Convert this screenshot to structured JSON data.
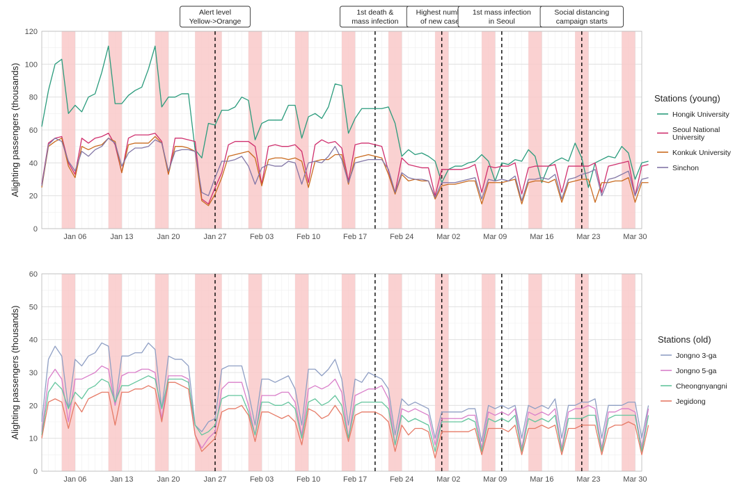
{
  "chart_data": [
    {
      "type": "line",
      "ylabel": "Alighting passengers (thousands)",
      "ylim": [
        0,
        120
      ],
      "yticks": [
        0,
        20,
        40,
        60,
        80,
        100,
        120
      ],
      "x_start": "2020-01-01",
      "x_end": "2020-03-31",
      "xticks": [
        "Jan 06",
        "Jan 13",
        "Jan 20",
        "Jan 27",
        "Feb 03",
        "Feb 10",
        "Feb 17",
        "Feb 24",
        "Mar 02",
        "Mar 09",
        "Mar 16",
        "Mar 23",
        "Mar 30"
      ],
      "grid": true,
      "legend": {
        "title": "Stations (young)",
        "position": "right"
      },
      "weekend_bands": [
        [
          "2020-01-04",
          "2020-01-05"
        ],
        [
          "2020-01-11",
          "2020-01-12"
        ],
        [
          "2020-01-18",
          "2020-01-19"
        ],
        [
          "2020-01-24",
          "2020-01-27"
        ],
        [
          "2020-02-01",
          "2020-02-02"
        ],
        [
          "2020-02-08",
          "2020-02-09"
        ],
        [
          "2020-02-15",
          "2020-02-16"
        ],
        [
          "2020-02-22",
          "2020-02-23"
        ],
        [
          "2020-02-29",
          "2020-03-01"
        ],
        [
          "2020-03-07",
          "2020-03-08"
        ],
        [
          "2020-03-14",
          "2020-03-15"
        ],
        [
          "2020-03-21",
          "2020-03-22"
        ],
        [
          "2020-03-28",
          "2020-03-29"
        ]
      ],
      "band_color": "#f9c9c9",
      "event_lines": [
        "2020-01-27",
        "2020-02-20",
        "2020-03-01",
        "2020-03-10",
        "2020-03-22"
      ],
      "annotations": [
        {
          "date": "2020-01-27",
          "lines": [
            "Alert level",
            "Yellow->Orange"
          ]
        },
        {
          "date": "2020-02-20",
          "lines": [
            "1st death &",
            "mass infection"
          ]
        },
        {
          "date": "2020-03-01",
          "lines": [
            "Highest number",
            "of new cases"
          ]
        },
        {
          "date": "2020-03-10",
          "lines": [
            "1st mass infection",
            "in Seoul"
          ]
        },
        {
          "date": "2020-03-22",
          "lines": [
            "Social distancing",
            "campaign starts"
          ]
        }
      ],
      "series": [
        {
          "name": "Hongik University",
          "legend_lines": [
            "Hongik University"
          ],
          "color": "#2a9b7c",
          "values": [
            62,
            84,
            100,
            103,
            70,
            75,
            71,
            80,
            82,
            95,
            111,
            76,
            76,
            81,
            84,
            86,
            97,
            111,
            74,
            80,
            80,
            82,
            82,
            48,
            43,
            64,
            63,
            72,
            72,
            74,
            80,
            78,
            54,
            64,
            66,
            66,
            66,
            75,
            75,
            55,
            68,
            70,
            67,
            74,
            88,
            87,
            58,
            67,
            73,
            73,
            73,
            73,
            74,
            64,
            44,
            48,
            45,
            46,
            44,
            41,
            28,
            36,
            38,
            38,
            40,
            41,
            45,
            41,
            29,
            40,
            39,
            42,
            41,
            48,
            44,
            28,
            38,
            41,
            43,
            41,
            52,
            43,
            25,
            40,
            42,
            44,
            43,
            50,
            46,
            30,
            40,
            41
          ]
        },
        {
          "name": "Seoul National University",
          "legend_lines": [
            "Seoul National",
            "University"
          ],
          "color": "#cf2f6d",
          "values": [
            27,
            52,
            55,
            56,
            40,
            33,
            55,
            52,
            55,
            56,
            58,
            51,
            34,
            55,
            57,
            57,
            57,
            58,
            53,
            33,
            55,
            55,
            54,
            53,
            18,
            15,
            25,
            34,
            51,
            53,
            53,
            53,
            50,
            27,
            50,
            51,
            50,
            50,
            51,
            47,
            28,
            51,
            54,
            52,
            53,
            49,
            29,
            51,
            52,
            52,
            51,
            50,
            35,
            22,
            43,
            39,
            38,
            37,
            37,
            20,
            36,
            36,
            36,
            36,
            37,
            39,
            22,
            38,
            37,
            38,
            38,
            40,
            21,
            37,
            38,
            38,
            38,
            39,
            22,
            38,
            38,
            38,
            38,
            40,
            22,
            38,
            39,
            40,
            41,
            20,
            38,
            39
          ]
        },
        {
          "name": "Konkuk University",
          "legend_lines": [
            "Konkuk University"
          ],
          "color": "#c96a1e",
          "values": [
            25,
            50,
            53,
            55,
            38,
            31,
            50,
            48,
            50,
            51,
            55,
            53,
            34,
            51,
            52,
            52,
            52,
            56,
            52,
            33,
            50,
            50,
            49,
            47,
            17,
            14,
            21,
            31,
            44,
            45,
            46,
            47,
            43,
            26,
            42,
            43,
            43,
            42,
            43,
            41,
            25,
            41,
            42,
            42,
            45,
            45,
            27,
            43,
            44,
            45,
            44,
            43,
            33,
            21,
            33,
            29,
            30,
            29,
            29,
            18,
            26,
            27,
            27,
            28,
            29,
            29,
            15,
            28,
            28,
            28,
            29,
            30,
            15,
            28,
            29,
            29,
            28,
            30,
            16,
            28,
            29,
            30,
            30,
            16,
            28,
            28,
            29,
            29,
            31,
            16,
            28,
            28
          ]
        },
        {
          "name": "Sinchon",
          "legend_lines": [
            "Sinchon"
          ],
          "color": "#8276a6",
          "values": [
            26,
            51,
            55,
            53,
            41,
            35,
            47,
            44,
            48,
            50,
            55,
            52,
            38,
            46,
            49,
            49,
            50,
            54,
            52,
            35,
            47,
            48,
            48,
            47,
            22,
            20,
            31,
            41,
            41,
            42,
            44,
            38,
            27,
            37,
            39,
            38,
            38,
            41,
            40,
            27,
            40,
            41,
            40,
            44,
            50,
            42,
            28,
            40,
            41,
            42,
            42,
            42,
            36,
            22,
            34,
            31,
            30,
            30,
            29,
            19,
            28,
            28,
            28,
            29,
            30,
            31,
            18,
            30,
            29,
            30,
            29,
            32,
            17,
            30,
            30,
            31,
            30,
            33,
            18,
            30,
            31,
            33,
            34,
            36,
            20,
            30,
            31,
            33,
            35,
            20,
            30,
            31
          ]
        }
      ]
    },
    {
      "type": "line",
      "ylabel": "Alighting passengers (thousands)",
      "ylim": [
        0,
        60
      ],
      "yticks": [
        0,
        10,
        20,
        30,
        40,
        50,
        60
      ],
      "x_start": "2020-01-01",
      "x_end": "2020-03-31",
      "xticks": [
        "Jan 06",
        "Jan 13",
        "Jan 20",
        "Jan 27",
        "Feb 03",
        "Feb 10",
        "Feb 17",
        "Feb 24",
        "Mar 02",
        "Mar 09",
        "Mar 16",
        "Mar 23",
        "Mar 30"
      ],
      "grid": true,
      "legend": {
        "title": "Stations (old)",
        "position": "right"
      },
      "weekend_bands": [
        [
          "2020-01-04",
          "2020-01-05"
        ],
        [
          "2020-01-11",
          "2020-01-12"
        ],
        [
          "2020-01-18",
          "2020-01-19"
        ],
        [
          "2020-01-24",
          "2020-01-27"
        ],
        [
          "2020-02-01",
          "2020-02-02"
        ],
        [
          "2020-02-08",
          "2020-02-09"
        ],
        [
          "2020-02-15",
          "2020-02-16"
        ],
        [
          "2020-02-22",
          "2020-02-23"
        ],
        [
          "2020-02-29",
          "2020-03-01"
        ],
        [
          "2020-03-07",
          "2020-03-08"
        ],
        [
          "2020-03-14",
          "2020-03-15"
        ],
        [
          "2020-03-21",
          "2020-03-22"
        ],
        [
          "2020-03-28",
          "2020-03-29"
        ]
      ],
      "band_color": "#f9c9c9",
      "event_lines": [
        "2020-01-27",
        "2020-02-20",
        "2020-03-01",
        "2020-03-10",
        "2020-03-22"
      ],
      "annotations": [],
      "series": [
        {
          "name": "Jongno 3-ga",
          "legend_lines": [
            "Jongno 3-ga"
          ],
          "color": "#8f9fc4",
          "values": [
            15,
            34,
            38,
            35,
            19,
            34,
            32,
            35,
            36,
            39,
            38,
            20,
            35,
            35,
            36,
            36,
            39,
            37,
            19,
            35,
            34,
            34,
            32,
            14,
            12,
            15,
            16,
            31,
            32,
            32,
            32,
            24,
            14,
            28,
            28,
            27,
            28,
            29,
            25,
            14,
            31,
            31,
            29,
            31,
            34,
            28,
            14,
            28,
            27,
            30,
            29,
            28,
            25,
            11,
            22,
            20,
            21,
            20,
            19,
            10,
            18,
            18,
            18,
            18,
            19,
            19,
            9,
            20,
            19,
            20,
            19,
            20,
            10,
            20,
            19,
            20,
            19,
            22,
            10,
            20,
            20,
            21,
            21,
            22,
            10,
            20,
            20,
            20,
            21,
            21,
            10,
            20
          ]
        },
        {
          "name": "Jongno 5-ga",
          "legend_lines": [
            "Jongno 5-ga"
          ],
          "color": "#d97ec9",
          "values": [
            12,
            28,
            31,
            28,
            15,
            28,
            28,
            29,
            30,
            32,
            31,
            20,
            29,
            30,
            30,
            31,
            31,
            30,
            16,
            29,
            29,
            29,
            28,
            11,
            7,
            10,
            12,
            25,
            27,
            27,
            27,
            20,
            11,
            23,
            23,
            23,
            24,
            24,
            21,
            11,
            25,
            26,
            25,
            26,
            28,
            24,
            10,
            23,
            24,
            25,
            25,
            26,
            22,
            8,
            19,
            18,
            19,
            18,
            17,
            8,
            16,
            16,
            16,
            16,
            17,
            17,
            7,
            18,
            17,
            18,
            17,
            19,
            7,
            18,
            17,
            18,
            17,
            19,
            7,
            18,
            19,
            19,
            20,
            19,
            7,
            18,
            18,
            19,
            19,
            18,
            7,
            19
          ]
        },
        {
          "name": "Cheongnyangni",
          "legend_lines": [
            "Cheongnyangni"
          ],
          "color": "#63c59d",
          "values": [
            11,
            24,
            27,
            25,
            19,
            24,
            22,
            25,
            26,
            28,
            27,
            21,
            26,
            26,
            27,
            28,
            29,
            28,
            19,
            28,
            28,
            28,
            27,
            14,
            11,
            12,
            14,
            22,
            23,
            23,
            23,
            18,
            11,
            21,
            21,
            20,
            20,
            21,
            19,
            10,
            21,
            22,
            20,
            21,
            23,
            20,
            10,
            20,
            21,
            21,
            21,
            21,
            19,
            8,
            17,
            15,
            16,
            15,
            14,
            6,
            15,
            15,
            15,
            15,
            16,
            15,
            6,
            16,
            15,
            16,
            15,
            17,
            6,
            16,
            15,
            16,
            15,
            17,
            6,
            16,
            16,
            16,
            17,
            17,
            6,
            16,
            17,
            17,
            17,
            17,
            6,
            17
          ]
        },
        {
          "name": "Jegidong",
          "legend_lines": [
            "Jegidong"
          ],
          "color": "#e67a66",
          "values": [
            10,
            21,
            22,
            21,
            13,
            21,
            18,
            22,
            23,
            24,
            24,
            14,
            24,
            24,
            25,
            25,
            26,
            25,
            15,
            27,
            27,
            26,
            25,
            11,
            6,
            8,
            10,
            18,
            19,
            19,
            20,
            17,
            9,
            18,
            18,
            17,
            16,
            17,
            15,
            8,
            19,
            18,
            16,
            17,
            20,
            17,
            9,
            17,
            18,
            18,
            18,
            17,
            15,
            6,
            14,
            11,
            13,
            13,
            12,
            4,
            12,
            12,
            12,
            12,
            12,
            13,
            5,
            13,
            13,
            13,
            12,
            14,
            5,
            13,
            13,
            14,
            13,
            14,
            5,
            13,
            13,
            14,
            14,
            14,
            5,
            13,
            14,
            14,
            15,
            14,
            5,
            14
          ]
        }
      ]
    }
  ]
}
